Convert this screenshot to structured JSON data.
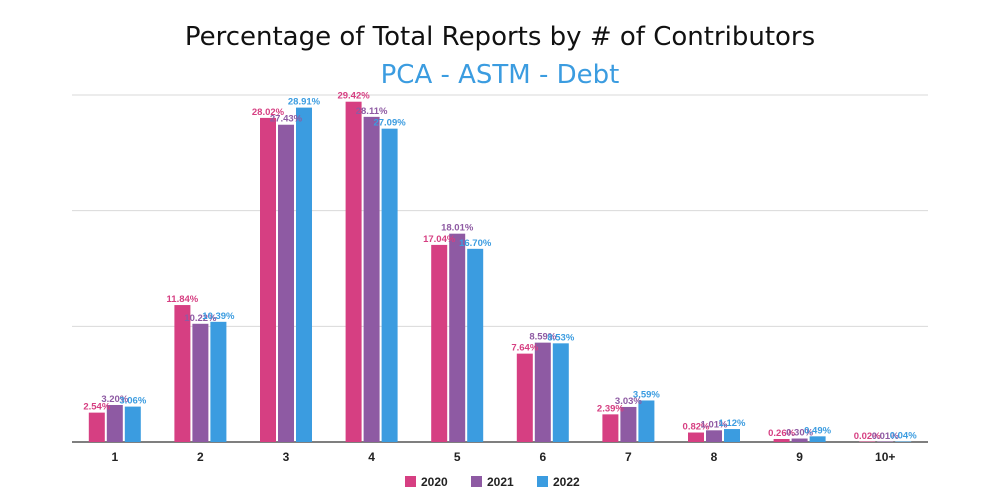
{
  "chart_data": {
    "type": "bar",
    "title": "Percentage of Total Reports by # of Contributors",
    "subtitle": "PCA - ASTM - Debt",
    "xlabel": "",
    "ylabel": "",
    "ylim": [
      0,
      30
    ],
    "grid": true,
    "legend": "bottom-center",
    "categories": [
      "1",
      "2",
      "3",
      "4",
      "5",
      "6",
      "7",
      "8",
      "9",
      "10+"
    ],
    "series": [
      {
        "name": "2020",
        "color": "#d63f82",
        "values": [
          2.54,
          11.84,
          28.02,
          29.42,
          17.04,
          7.64,
          2.39,
          0.82,
          0.26,
          0.02
        ],
        "labels": [
          "2.54%",
          "11.84%",
          "28.02%",
          "29.42%",
          "17.04%",
          "7.64%",
          "2.39%",
          "0.82%",
          "0.26%",
          "0.02%"
        ]
      },
      {
        "name": "2021",
        "color": "#8e5aa3",
        "values": [
          3.2,
          10.22,
          27.43,
          28.11,
          18.01,
          8.59,
          3.03,
          1.01,
          0.3,
          0.01
        ],
        "labels": [
          "3.20%",
          "10.22%",
          "27.43%",
          "28.11%",
          "18.01%",
          "8.59%",
          "3.03%",
          "1.01%",
          "0.30%",
          "0.01%"
        ]
      },
      {
        "name": "2022",
        "color": "#3b9ce0",
        "values": [
          3.06,
          10.39,
          28.91,
          27.09,
          16.7,
          8.53,
          3.59,
          1.12,
          0.49,
          0.04
        ],
        "labels": [
          "3.06%",
          "10.39%",
          "28.91%",
          "27.09%",
          "16.70%",
          "8.53%",
          "3.59%",
          "1.12%",
          "0.49%",
          "0.04%"
        ]
      }
    ]
  },
  "colors": {
    "subtitle": "#3b9ce0",
    "grid": "#d9d9d9",
    "axis": "#333333"
  }
}
